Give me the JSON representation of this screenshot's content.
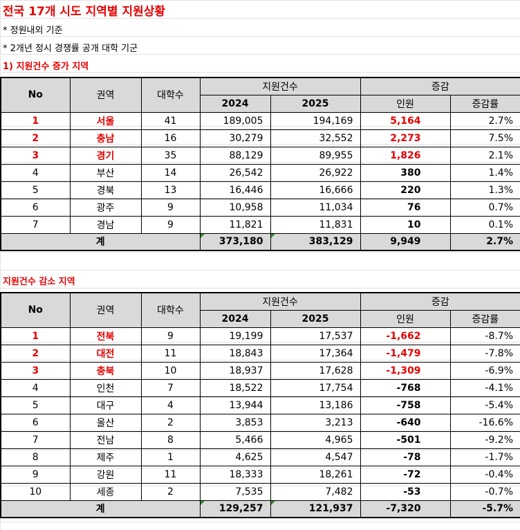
{
  "title": "전국 17개 시도 지역별 지원상황",
  "notes": [
    "* 정원내외 기준",
    "* 2개년 정시 경쟁률 공개 대학 기군"
  ],
  "section1": {
    "label": "1) 지원건수 증가 지역",
    "headers": {
      "no": "No",
      "region": "권역",
      "univ": "대학수",
      "apps": "지원건수",
      "y2024": "2024",
      "y2025": "2025",
      "change": "증감",
      "people": "인원",
      "rate": "증감률"
    },
    "rows": [
      {
        "no": "1",
        "region": "서울",
        "univ": "41",
        "y2024": "189,005",
        "y2025": "194,169",
        "people": "5,164",
        "rate": "2.7%",
        "highlight": true
      },
      {
        "no": "2",
        "region": "충남",
        "univ": "16",
        "y2024": "30,279",
        "y2025": "32,552",
        "people": "2,273",
        "rate": "7.5%",
        "highlight": true
      },
      {
        "no": "3",
        "region": "경기",
        "univ": "35",
        "y2024": "88,129",
        "y2025": "89,955",
        "people": "1,826",
        "rate": "2.1%",
        "highlight": true
      },
      {
        "no": "4",
        "region": "부산",
        "univ": "14",
        "y2024": "26,542",
        "y2025": "26,922",
        "people": "380",
        "rate": "1.4%",
        "highlight": false
      },
      {
        "no": "5",
        "region": "경북",
        "univ": "13",
        "y2024": "16,446",
        "y2025": "16,666",
        "people": "220",
        "rate": "1.3%",
        "highlight": false
      },
      {
        "no": "6",
        "region": "광주",
        "univ": "9",
        "y2024": "10,958",
        "y2025": "11,034",
        "people": "76",
        "rate": "0.7%",
        "highlight": false
      },
      {
        "no": "7",
        "region": "경남",
        "univ": "9",
        "y2024": "11,821",
        "y2025": "11,831",
        "people": "10",
        "rate": "0.1%",
        "highlight": false
      }
    ],
    "total": {
      "label": "계",
      "y2024": "373,180",
      "y2025": "383,129",
      "people": "9,949",
      "rate": "2.7%"
    }
  },
  "section2": {
    "label": "지원건수 감소 지역",
    "headers": {
      "no": "No",
      "region": "권역",
      "univ": "대학수",
      "apps": "지원건수",
      "y2024": "2024",
      "y2025": "2025",
      "change": "증감",
      "people": "인원",
      "rate": "증감률"
    },
    "rows": [
      {
        "no": "1",
        "region": "전북",
        "univ": "9",
        "y2024": "19,199",
        "y2025": "17,537",
        "people": "-1,662",
        "rate": "-8.7%",
        "highlight": true
      },
      {
        "no": "2",
        "region": "대전",
        "univ": "11",
        "y2024": "18,843",
        "y2025": "17,364",
        "people": "-1,479",
        "rate": "-7.8%",
        "highlight": true
      },
      {
        "no": "3",
        "region": "충북",
        "univ": "10",
        "y2024": "18,937",
        "y2025": "17,628",
        "people": "-1,309",
        "rate": "-6.9%",
        "highlight": true
      },
      {
        "no": "4",
        "region": "인천",
        "univ": "7",
        "y2024": "18,522",
        "y2025": "17,754",
        "people": "-768",
        "rate": "-4.1%",
        "highlight": false
      },
      {
        "no": "5",
        "region": "대구",
        "univ": "4",
        "y2024": "13,944",
        "y2025": "13,186",
        "people": "-758",
        "rate": "-5.4%",
        "highlight": false
      },
      {
        "no": "6",
        "region": "울산",
        "univ": "2",
        "y2024": "3,853",
        "y2025": "3,213",
        "people": "-640",
        "rate": "-16.6%",
        "highlight": false
      },
      {
        "no": "7",
        "region": "전남",
        "univ": "8",
        "y2024": "5,466",
        "y2025": "4,965",
        "people": "-501",
        "rate": "-9.2%",
        "highlight": false
      },
      {
        "no": "8",
        "region": "제주",
        "univ": "1",
        "y2024": "4,625",
        "y2025": "4,547",
        "people": "-78",
        "rate": "-1.7%",
        "highlight": false
      },
      {
        "no": "9",
        "region": "강원",
        "univ": "11",
        "y2024": "18,333",
        "y2025": "18,261",
        "people": "-72",
        "rate": "-0.4%",
        "highlight": false
      },
      {
        "no": "10",
        "region": "세종",
        "univ": "2",
        "y2024": "7,535",
        "y2025": "7,482",
        "people": "-53",
        "rate": "-0.7%",
        "highlight": false
      }
    ],
    "total": {
      "label": "계",
      "y2024": "129,257",
      "y2025": "121,937",
      "people": "-7,320",
      "rate": "-5.7%"
    }
  }
}
